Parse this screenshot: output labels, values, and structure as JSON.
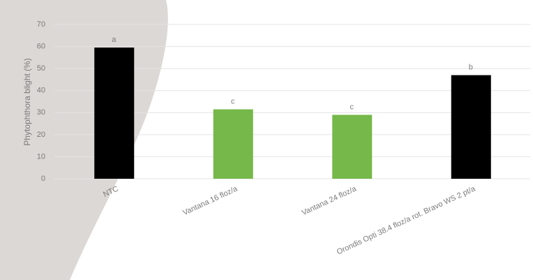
{
  "chart_data": {
    "type": "bar",
    "y_label": "Phytophthora blight (%)",
    "categories": [
      "NTC",
      "Vantana 16 floz/a",
      "Vantana 24 floz/a",
      "Orondis Opti 38.4 floz/a rot. Bravo WS 2 pt/a"
    ],
    "values": [
      59.5,
      31.5,
      29,
      47
    ],
    "colors": [
      "#000000",
      "#76b84a",
      "#76b84a",
      "#000000"
    ],
    "annotations": [
      "a",
      "c",
      "c",
      "b"
    ],
    "ylim": [
      0,
      70
    ],
    "yticks": [
      0,
      10,
      20,
      30,
      40,
      50,
      60,
      70
    ],
    "grid": true
  }
}
